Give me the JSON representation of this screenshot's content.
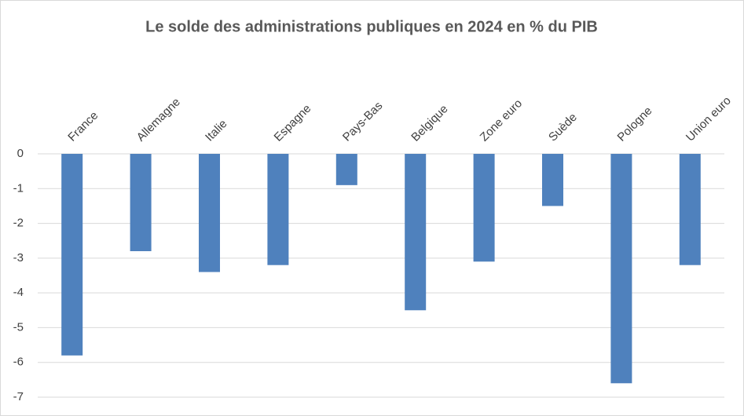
{
  "chart_data": {
    "type": "bar",
    "title": "Le solde des administrations publiques  en 2024 en % du PIB",
    "categories": [
      "France",
      "Allemagne",
      "Italie",
      "Espagne",
      "Pays-Bas",
      "Belgique",
      "Zone euro",
      "Suède",
      "Pologne",
      "Union euro"
    ],
    "values": [
      -5.8,
      -2.8,
      -3.4,
      -3.2,
      -0.9,
      -4.5,
      -3.1,
      -1.5,
      -6.6,
      -3.2
    ],
    "color": "#4f81bd",
    "ylim": [
      -7,
      0
    ],
    "yticks": [
      0,
      -1,
      -2,
      -3,
      -4,
      -5,
      -6,
      -7
    ],
    "grid": true
  }
}
